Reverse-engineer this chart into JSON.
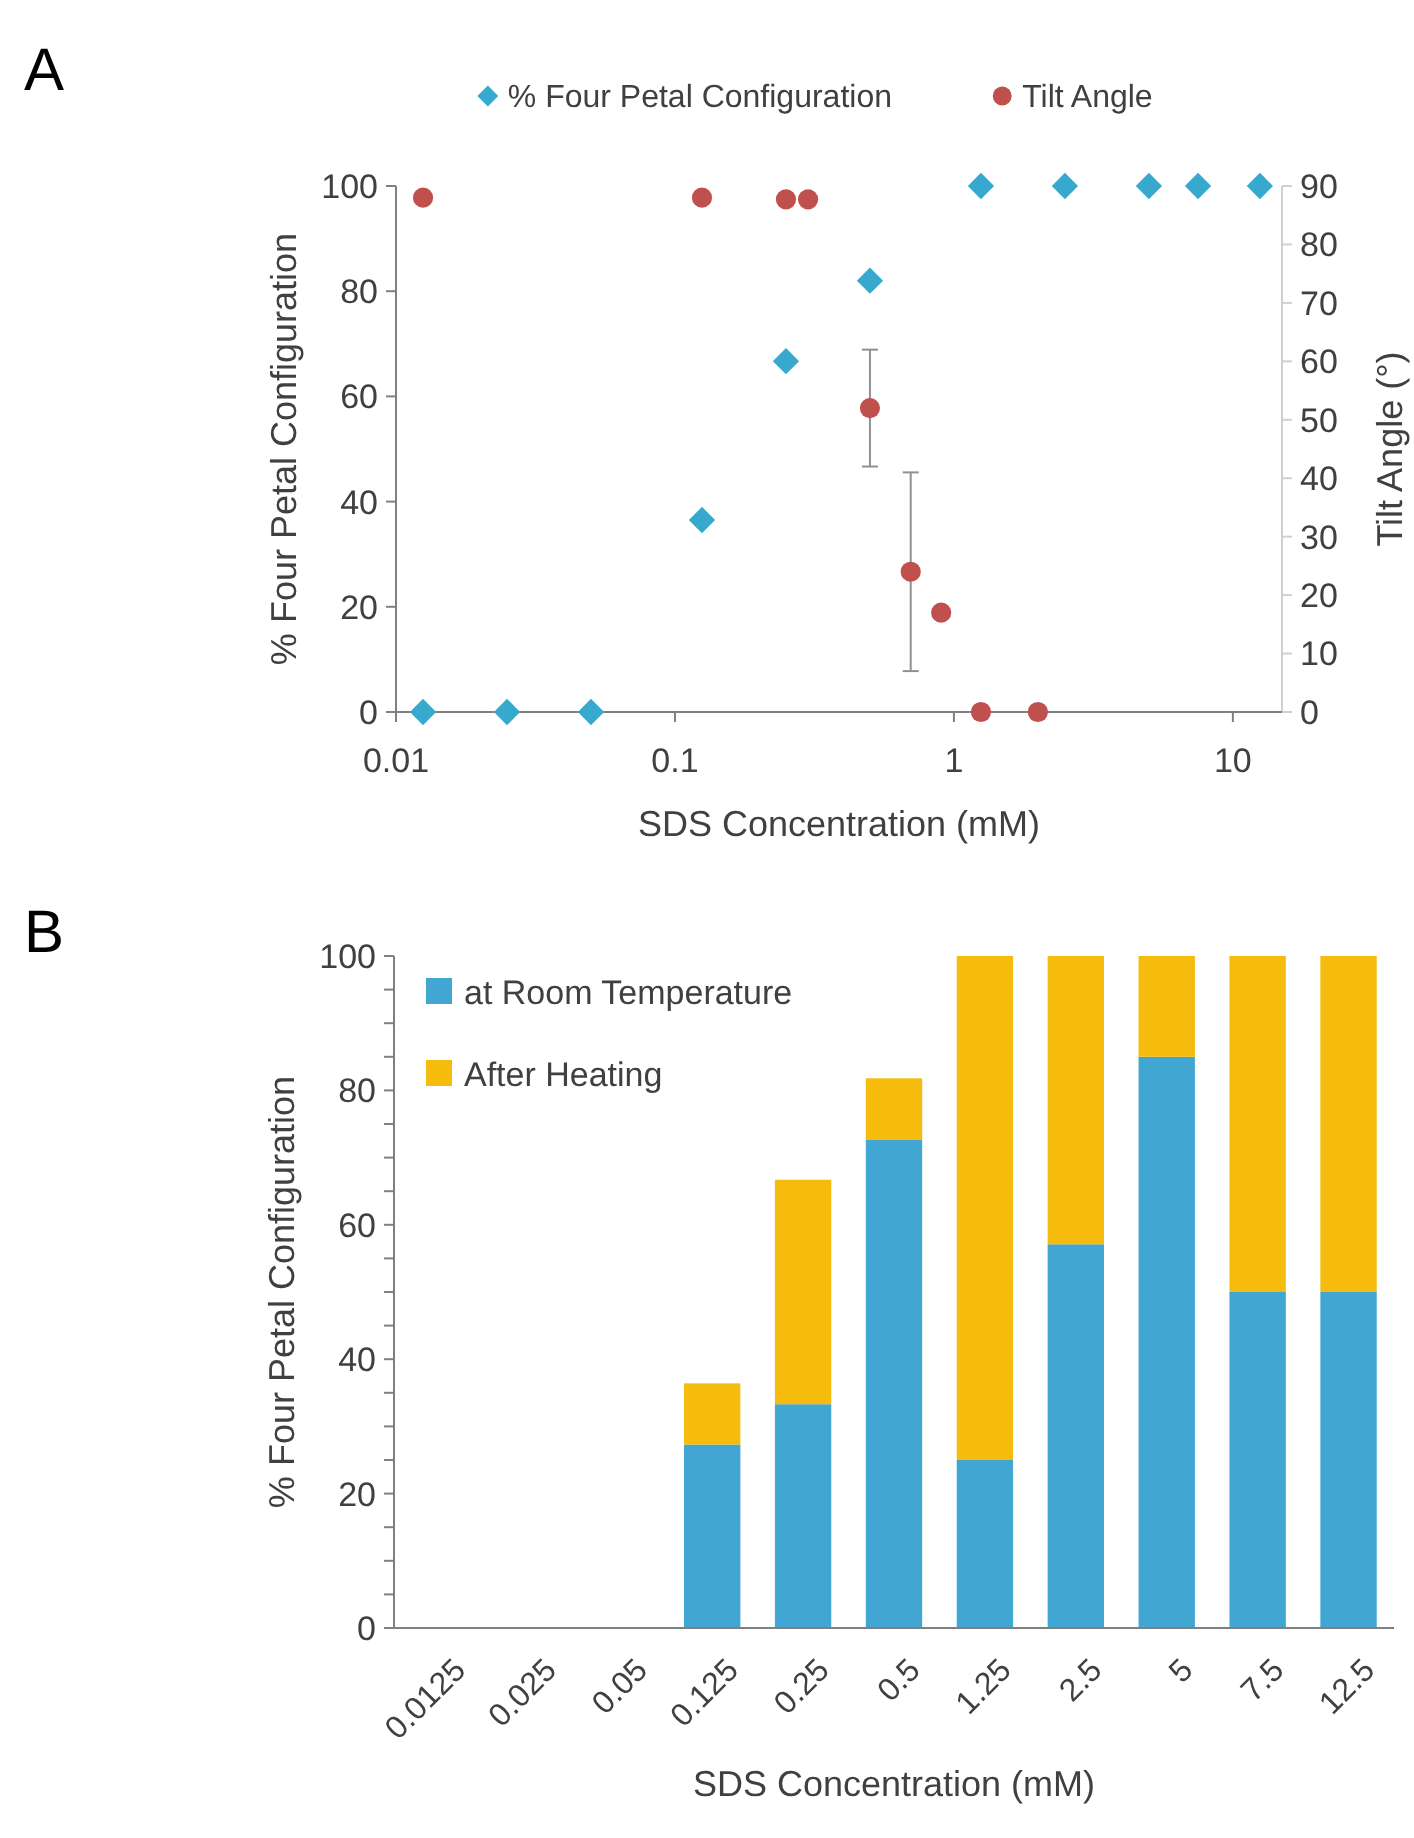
{
  "chart_data": [
    {
      "type": "scatter",
      "annotations": [
        "A"
      ],
      "xlabel": "SDS Concentration (mM)",
      "ylabel": "% Four Petal Configuration",
      "y2label": "Tilt Angle (°)",
      "log": "x",
      "xlim": [
        0.01,
        15
      ],
      "xticks": [
        0.01,
        0.1,
        1,
        10
      ],
      "ylim": [
        0,
        100
      ],
      "yticks": [
        0,
        20,
        40,
        60,
        80,
        100
      ],
      "y2lim": [
        0,
        90
      ],
      "y2ticks": [
        0,
        10,
        20,
        30,
        40,
        50,
        60,
        70,
        80,
        90
      ],
      "legend": "top",
      "grid": false,
      "series": [
        {
          "name": "% Four Petal Configuration",
          "color": "#37a9cf",
          "marker": "diamond",
          "x": [
            0.0125,
            0.025,
            0.05,
            0.125,
            0.25,
            0.5,
            1.25,
            2.5,
            5,
            7.5,
            12.5
          ],
          "values": [
            0,
            0,
            0,
            36.5,
            66.7,
            82,
            100,
            100,
            100,
            100,
            100
          ]
        },
        {
          "name": "Tilt Angle",
          "color": "#c0504d",
          "marker": "circle",
          "axis": "y2",
          "x": [
            0.0125,
            0.125,
            0.25,
            0.3,
            0.5,
            0.7,
            0.9,
            1.25,
            2
          ],
          "values": [
            88,
            88,
            87.7,
            87.7,
            52,
            24,
            17,
            0,
            0
          ],
          "errors": [
            null,
            null,
            null,
            null,
            [
              42,
              62
            ],
            [
              7,
              41
            ],
            null,
            null,
            null
          ]
        }
      ]
    },
    {
      "type": "bar",
      "stacked": true,
      "annotations": [
        "B"
      ],
      "xlabel": "SDS Concentration (mM)",
      "ylabel": "% Four Petal Configuration",
      "categories": [
        "0.0125",
        "0.025",
        "0.05",
        "0.125",
        "0.25",
        "0.5",
        "1.25",
        "2.5",
        "5",
        "7.5",
        "12.5"
      ],
      "ylim": [
        0,
        100
      ],
      "yticks": [
        0,
        {
          "value": 5,
          "label": null
        },
        {
          "value": 10,
          "label": null
        },
        {
          "value": 15,
          "label": null
        },
        20,
        {
          "value": 25,
          "label": null
        },
        {
          "value": 30,
          "label": null
        },
        {
          "value": 35,
          "label": null
        },
        40,
        {
          "value": 45,
          "label": null
        },
        {
          "value": 50,
          "label": null
        },
        {
          "value": 55,
          "label": null
        },
        60,
        {
          "value": 65,
          "label": null
        },
        {
          "value": 70,
          "label": null
        },
        {
          "value": 75,
          "label": null
        },
        80,
        {
          "value": 85,
          "label": null
        },
        {
          "value": 90,
          "label": null
        },
        {
          "value": 95,
          "label": null
        },
        100
      ],
      "legend": "top left",
      "grid": false,
      "series": [
        {
          "name": "at Room Temperature",
          "color": "#41a6d1",
          "values": [
            0,
            0,
            0,
            27.3,
            33.3,
            72.7,
            25,
            57.1,
            85,
            50,
            50
          ]
        },
        {
          "name": "After Heating",
          "color": "#f5bc0e",
          "values": [
            0,
            0,
            0,
            9.1,
            33.4,
            9.1,
            75,
            42.9,
            15,
            50,
            50
          ]
        }
      ]
    }
  ]
}
